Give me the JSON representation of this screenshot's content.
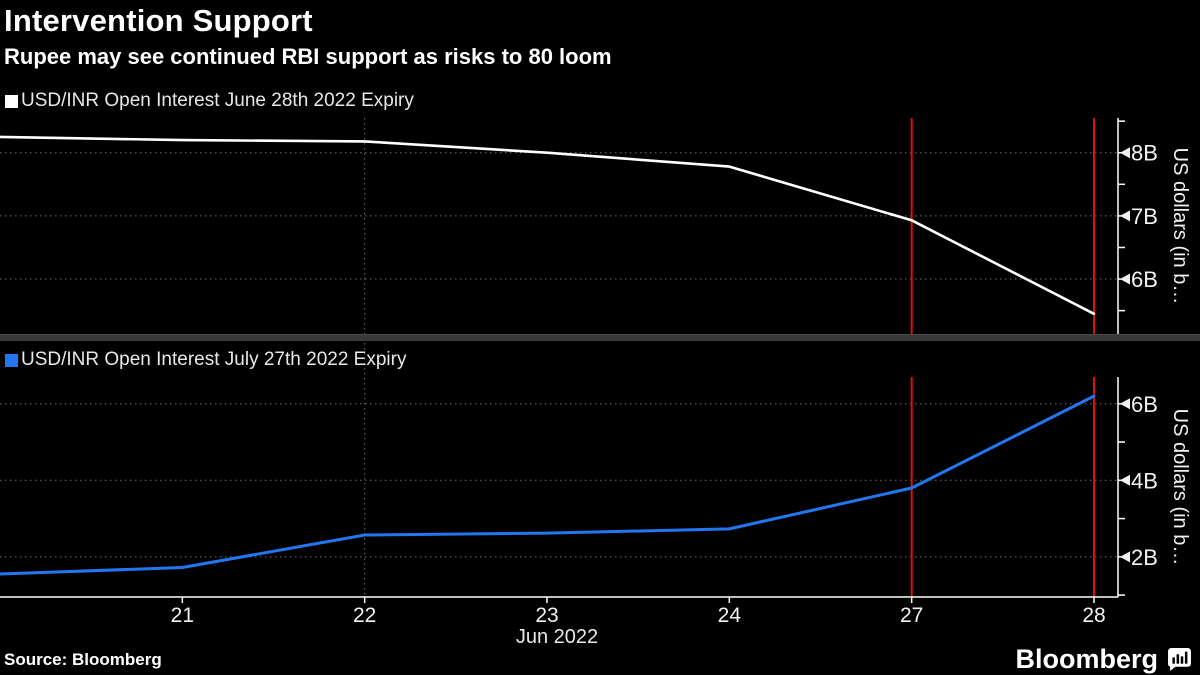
{
  "header": {
    "title": "Intervention Support",
    "subtitle": "Rupee may see continued RBI support as risks to 80 loom"
  },
  "footer": {
    "source_label": "Source: Bloomberg",
    "brand_text": "Bloomberg",
    "brand_icon": "bar-chart-bubble-icon"
  },
  "colors": {
    "background": "#000000",
    "title_text": "#ffffff",
    "legend_text": "#e8e8e8",
    "axis": "#ffffff",
    "tick_text": "#f2f2f2",
    "grid": "#6f6f6f",
    "divider": "#37383a",
    "series_june": "#ffffff",
    "series_july": "#2277f0",
    "event_marker_red": "#e01000"
  },
  "x_axis": {
    "month_label": "Jun 2022",
    "tick_labels": [
      "21",
      "22",
      "23",
      "24",
      "27",
      "28"
    ]
  },
  "chart_data": [
    {
      "type": "line",
      "panel": "top",
      "legend": "USD/INR Open Interest June 28th 2022 Expiry",
      "color_key": "series_june",
      "x": [
        "Jun 20",
        "Jun 21",
        "Jun 22",
        "Jun 23",
        "Jun 24",
        "Jun 27",
        "Jun 28"
      ],
      "values_usd_billions": [
        8.25,
        8.2,
        8.18,
        8.0,
        7.78,
        6.93,
        5.45
      ],
      "ylabel": "US dollars (in b...",
      "yticks": [
        8,
        7,
        6
      ],
      "ytick_labels": [
        "8B",
        "7B",
        "6B"
      ],
      "ylim": [
        5.13,
        8.55
      ],
      "minor_tick_step": 0.5,
      "grid": "dotted",
      "legend_position": "top-left",
      "vline_white_at": "Jun 22",
      "vlines_red_at": [
        "Jun 27",
        "Jun 28"
      ]
    },
    {
      "type": "line",
      "panel": "bottom",
      "legend": "USD/INR Open Interest July 27th 2022 Expiry",
      "color_key": "series_july",
      "x": [
        "Jun 20",
        "Jun 21",
        "Jun 22",
        "Jun 23",
        "Jun 24",
        "Jun 27",
        "Jun 28"
      ],
      "values_usd_billions": [
        1.55,
        1.72,
        2.57,
        2.62,
        2.73,
        3.8,
        6.2
      ],
      "ylabel": "US dollars (in b...",
      "yticks": [
        6,
        4,
        2
      ],
      "ytick_labels": [
        "6B",
        "4B",
        "2B"
      ],
      "ylim": [
        0.95,
        6.7
      ],
      "minor_tick_step": 1,
      "grid": "dotted",
      "legend_position": "top-left",
      "vline_white_at": "Jun 22",
      "vlines_red_at": [
        "Jun 27",
        "Jun 28"
      ]
    }
  ]
}
